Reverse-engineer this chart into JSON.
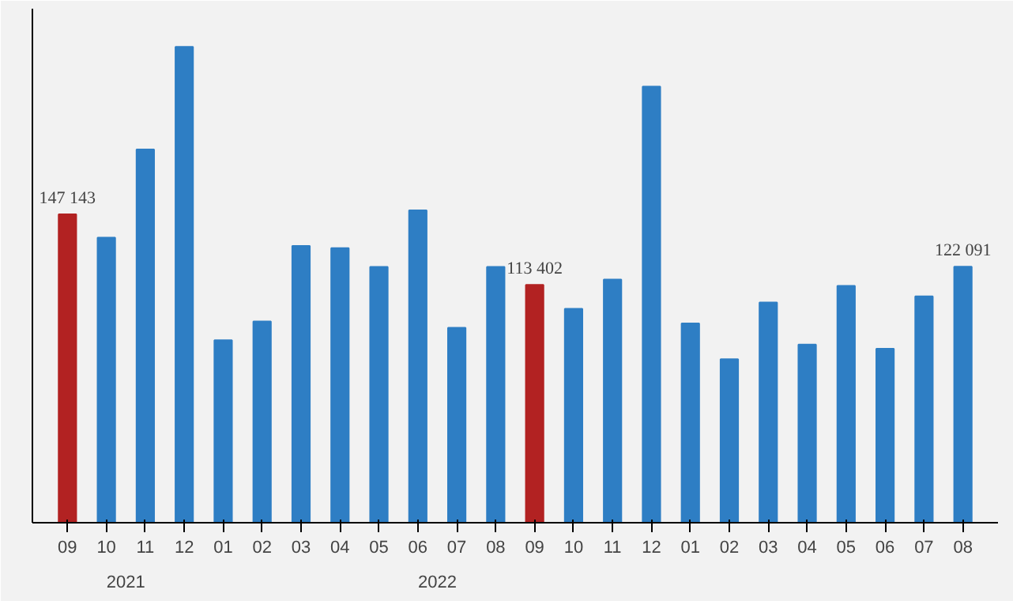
{
  "chart_data": {
    "type": "bar",
    "categories": [
      "09",
      "10",
      "11",
      "12",
      "01",
      "02",
      "03",
      "04",
      "05",
      "06",
      "07",
      "08",
      "09",
      "10",
      "11",
      "12",
      "01",
      "02",
      "03",
      "04",
      "05",
      "06",
      "07",
      "08"
    ],
    "values": [
      147143,
      136000,
      178000,
      227000,
      87000,
      96000,
      132000,
      131000,
      122000,
      149000,
      93000,
      122000,
      113402,
      102000,
      116000,
      208000,
      95000,
      78000,
      105000,
      85000,
      113000,
      83000,
      108000,
      122091
    ],
    "colors": [
      "#b22222",
      "#2e7ec4",
      "#2e7ec4",
      "#2e7ec4",
      "#2e7ec4",
      "#2e7ec4",
      "#2e7ec4",
      "#2e7ec4",
      "#2e7ec4",
      "#2e7ec4",
      "#2e7ec4",
      "#2e7ec4",
      "#b22222",
      "#2e7ec4",
      "#2e7ec4",
      "#2e7ec4",
      "#2e7ec4",
      "#2e7ec4",
      "#2e7ec4",
      "#2e7ec4",
      "#2e7ec4",
      "#2e7ec4",
      "#2e7ec4",
      "#2e7ec4"
    ],
    "value_labels": [
      "147 143",
      null,
      null,
      null,
      null,
      null,
      null,
      null,
      null,
      null,
      null,
      null,
      "113 402",
      null,
      null,
      null,
      null,
      null,
      null,
      null,
      null,
      null,
      null,
      "122 091"
    ],
    "annotations": [
      "2021",
      "2022"
    ],
    "tick_labels": "x",
    "grid": false
  }
}
